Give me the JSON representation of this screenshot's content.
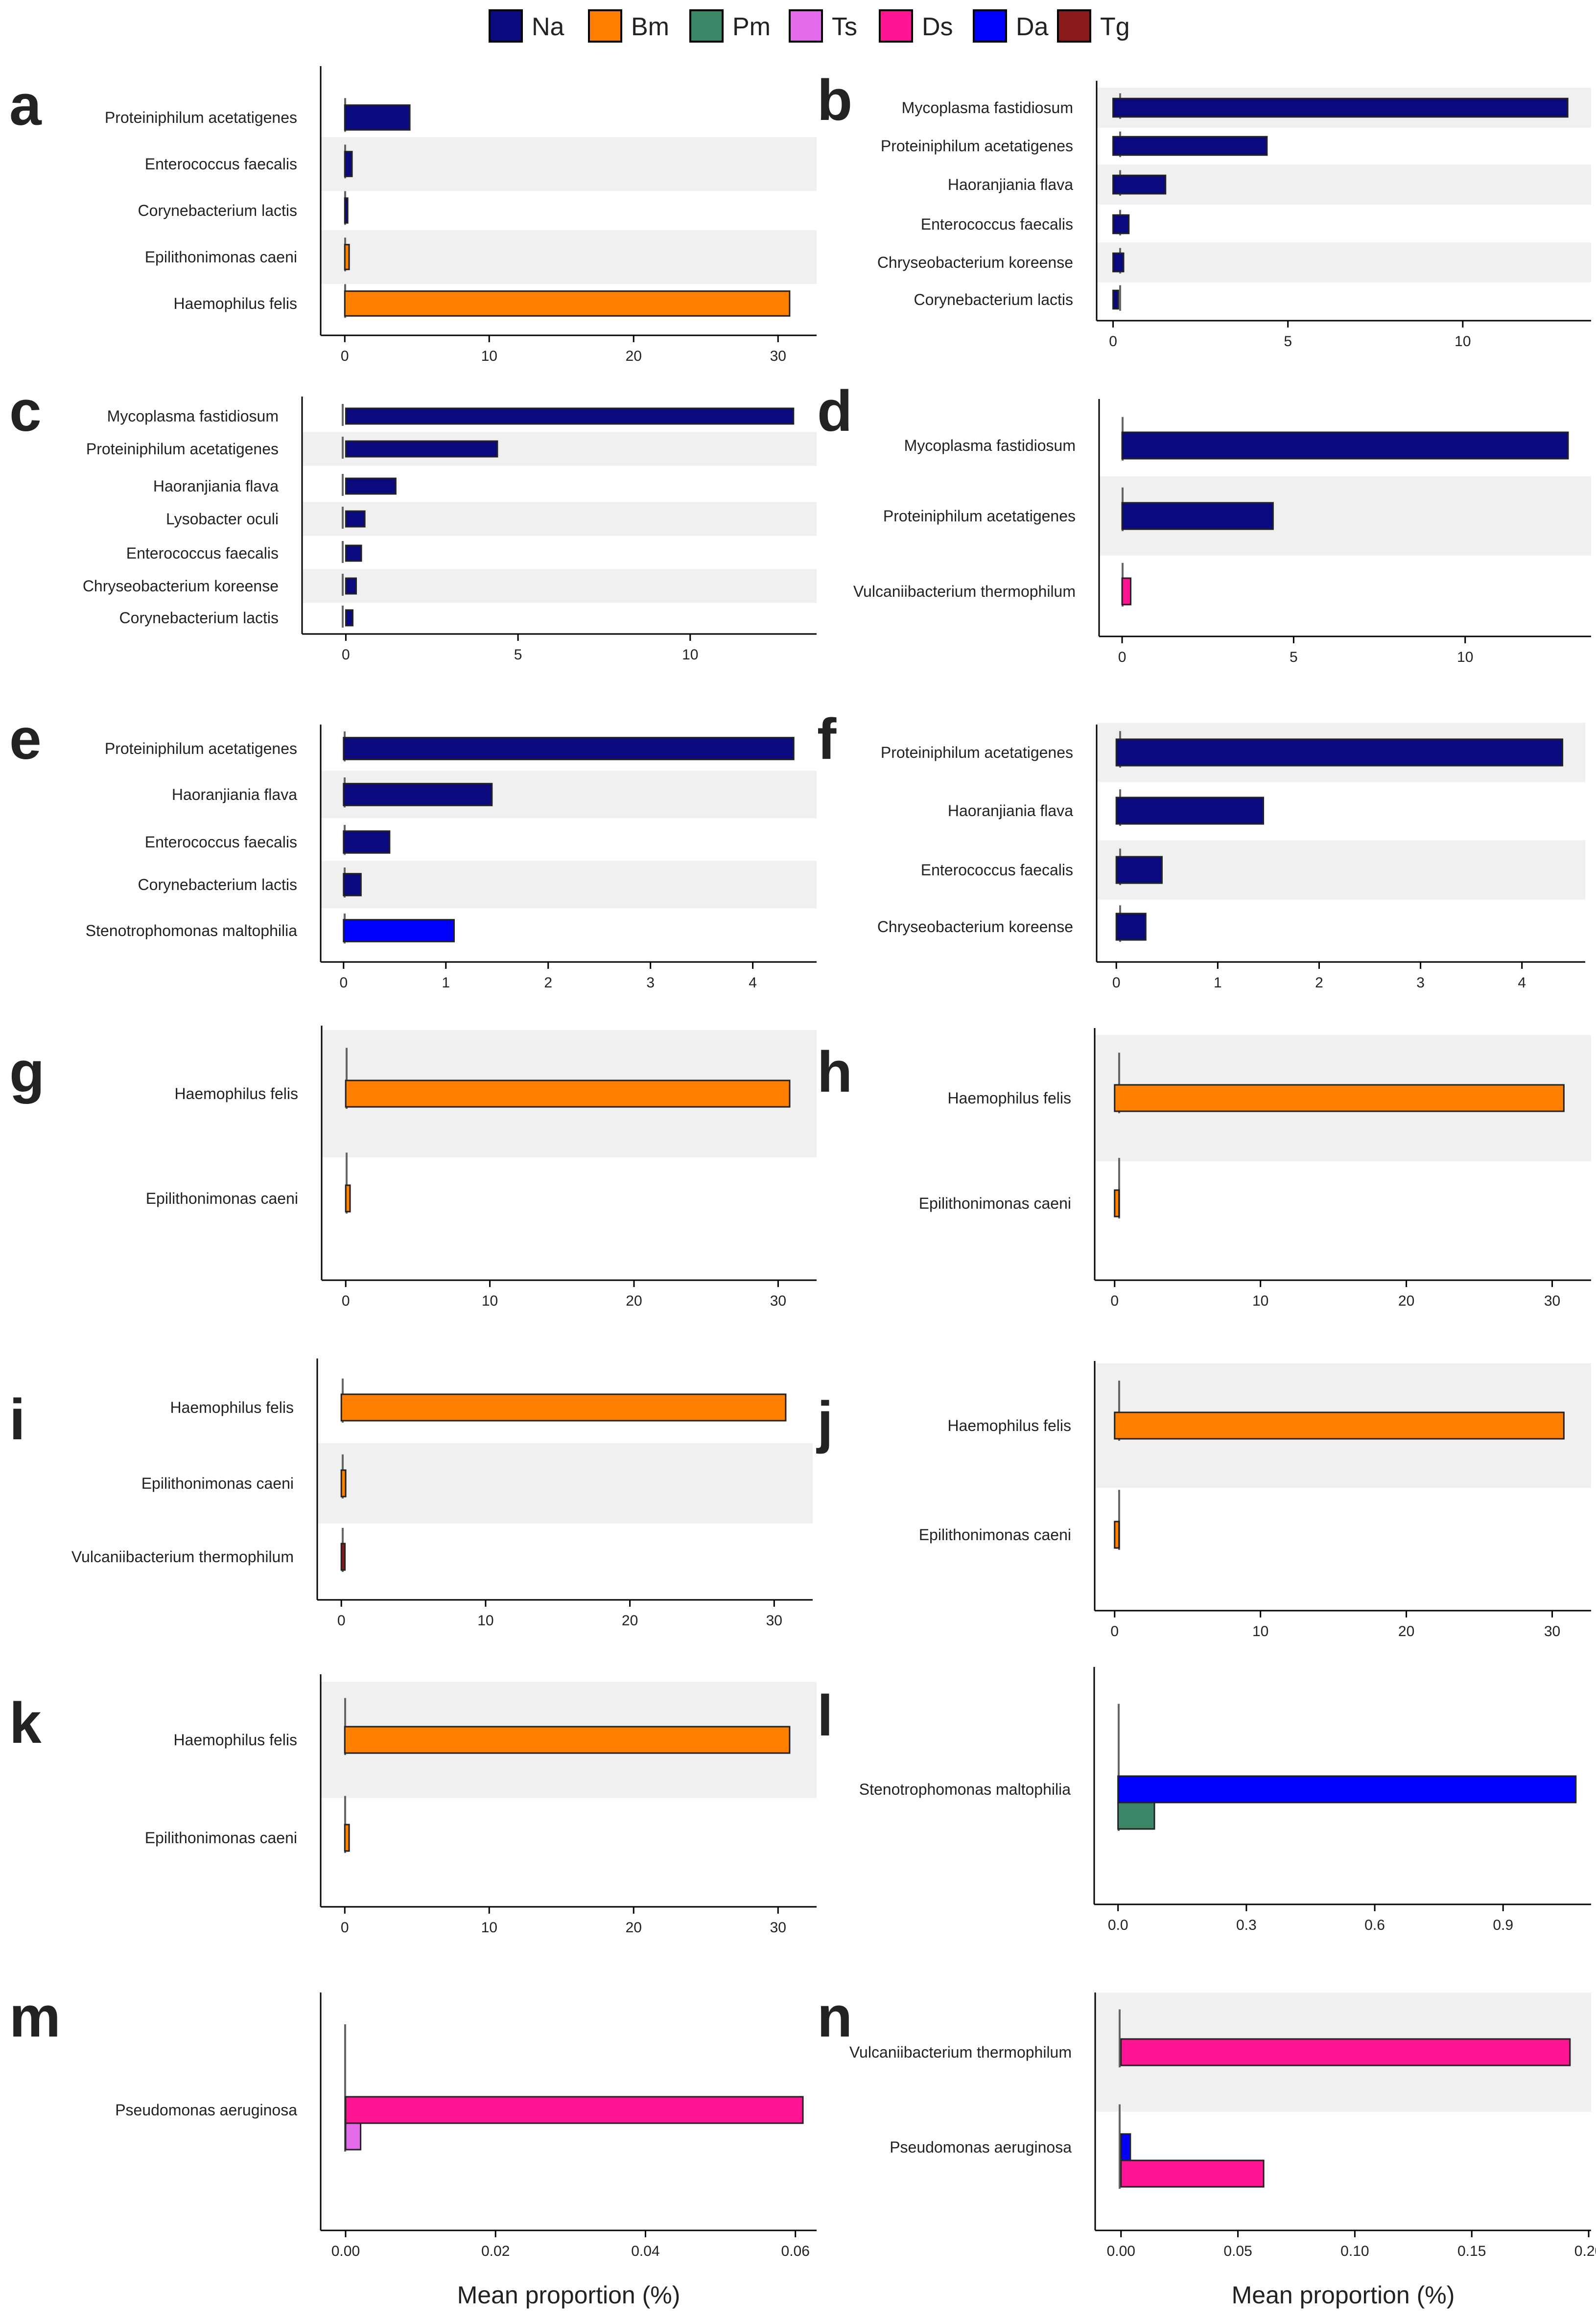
{
  "legend": [
    {
      "code": "Na",
      "color": "#0a0a7e"
    },
    {
      "code": "Bm",
      "color": "#ff8000"
    },
    {
      "code": "Pm",
      "color": "#3b8768"
    },
    {
      "code": "Ts",
      "color": "#e36bea"
    },
    {
      "code": "Ds",
      "color": "#ff1493"
    },
    {
      "code": "Da",
      "color": "#0000ff"
    },
    {
      "code": "Tg",
      "color": "#8b1a1a"
    }
  ],
  "xlabel": "Mean proportion (%)",
  "chart_data": [
    {
      "panel": "a",
      "type": "bar",
      "xlabel": "",
      "xlim": [
        -1.5,
        32.5
      ],
      "ticks": [
        0,
        10,
        20,
        30
      ],
      "categories": [
        "Proteiniphilum acetatigenes",
        "Enterococcus faecalis",
        "Corynebacterium lactis",
        "Epilithonimonas caeni",
        "Haemophilus felis"
      ],
      "bands": [
        false,
        true,
        false,
        true,
        false
      ],
      "series": [
        [
          {
            "group": "Na",
            "value": 4.5
          }
        ],
        [
          {
            "group": "Na",
            "value": 0.5
          }
        ],
        [
          {
            "group": "Na",
            "value": 0.2
          }
        ],
        [
          {
            "group": "Bm",
            "value": 0.3
          }
        ],
        [
          {
            "group": "Bm",
            "value": 30.8
          }
        ]
      ]
    },
    {
      "panel": "b",
      "type": "bar",
      "xlabel": "",
      "xlim": [
        -0.4,
        13.6
      ],
      "ticks": [
        0,
        5,
        10
      ],
      "categories": [
        "Mycoplasma fastidiosum",
        "Proteiniphilum acetatigenes",
        "Haoranjiania flava",
        "Enterococcus faecalis",
        "Chryseobacterium koreense",
        "Corynebacterium lactis"
      ],
      "bands": [
        true,
        false,
        true,
        false,
        true,
        false
      ],
      "series": [
        [
          {
            "group": "Na",
            "value": 13.0
          }
        ],
        [
          {
            "group": "Na",
            "value": 4.4
          }
        ],
        [
          {
            "group": "Na",
            "value": 1.5
          }
        ],
        [
          {
            "group": "Na",
            "value": 0.45
          }
        ],
        [
          {
            "group": "Na",
            "value": 0.3
          }
        ],
        [
          {
            "group": "Na",
            "value": 0.15
          }
        ]
      ]
    },
    {
      "panel": "c",
      "type": "bar",
      "xlabel": "",
      "xlim": [
        -1.2,
        13.6
      ],
      "ticks": [
        0,
        5,
        10
      ],
      "categories": [
        "Mycoplasma fastidiosum",
        "Proteiniphilum acetatigenes",
        "Haoranjiania flava",
        "Lysobacter oculi",
        "Enterococcus faecalis",
        "Chryseobacterium koreense",
        "Corynebacterium lactis"
      ],
      "bands": [
        false,
        true,
        false,
        true,
        false,
        true,
        false
      ],
      "series": [
        [
          {
            "group": "Na",
            "value": 13.0
          }
        ],
        [
          {
            "group": "Na",
            "value": 4.4
          }
        ],
        [
          {
            "group": "Na",
            "value": 1.45
          }
        ],
        [
          {
            "group": "Na",
            "value": 0.55
          }
        ],
        [
          {
            "group": "Na",
            "value": 0.45
          }
        ],
        [
          {
            "group": "Na",
            "value": 0.3
          }
        ],
        [
          {
            "group": "Na",
            "value": 0.2
          }
        ]
      ]
    },
    {
      "panel": "d",
      "type": "bar",
      "xlabel": "",
      "xlim": [
        -0.6,
        13.6
      ],
      "ticks": [
        0,
        5,
        10
      ],
      "categories": [
        "Mycoplasma fastidiosum",
        "Proteiniphilum acetatigenes",
        "Vulcaniibacterium thermophilum"
      ],
      "bands": [
        false,
        true,
        false
      ],
      "series": [
        [
          {
            "group": "Na",
            "value": 13.0
          }
        ],
        [
          {
            "group": "Na",
            "value": 4.4
          }
        ],
        [
          {
            "group": "Ds",
            "value": 0.25
          }
        ]
      ]
    },
    {
      "panel": "e",
      "type": "bar",
      "xlabel": "",
      "xlim": [
        -0.2,
        4.6
      ],
      "ticks": [
        0,
        1,
        2,
        3,
        4
      ],
      "categories": [
        "Proteiniphilum acetatigenes",
        "Haoranjiania flava",
        "Enterococcus faecalis",
        "Corynebacterium lactis",
        "Stenotrophomonas maltophilia"
      ],
      "bands": [
        false,
        true,
        false,
        true,
        false
      ],
      "series": [
        [
          {
            "group": "Na",
            "value": 4.4
          }
        ],
        [
          {
            "group": "Na",
            "value": 1.45
          }
        ],
        [
          {
            "group": "Na",
            "value": 0.45
          }
        ],
        [
          {
            "group": "Na",
            "value": 0.17
          }
        ],
        [
          {
            "group": "Da",
            "value": 1.08
          }
        ]
      ]
    },
    {
      "panel": "f",
      "type": "bar",
      "xlabel": "",
      "xlim": [
        -0.17,
        4.6
      ],
      "ticks": [
        0,
        1,
        2,
        3,
        4
      ],
      "categories": [
        "Proteiniphilum acetatigenes",
        "Haoranjiania flava",
        "Enterococcus faecalis",
        "Chryseobacterium koreense"
      ],
      "bands": [
        true,
        false,
        true,
        false
      ],
      "series": [
        [
          {
            "group": "Na",
            "value": 4.4
          }
        ],
        [
          {
            "group": "Na",
            "value": 1.45
          }
        ],
        [
          {
            "group": "Na",
            "value": 0.45
          }
        ],
        [
          {
            "group": "Na",
            "value": 0.29
          }
        ]
      ]
    },
    {
      "panel": "g",
      "type": "bar",
      "xlabel": "",
      "xlim": [
        -1.5,
        32.5
      ],
      "ticks": [
        0,
        10,
        20,
        30
      ],
      "categories": [
        "Haemophilus felis",
        "Epilithonimonas caeni"
      ],
      "bands": [
        true,
        false
      ],
      "series": [
        [
          {
            "group": "Bm",
            "value": 30.8
          }
        ],
        [
          {
            "group": "Bm",
            "value": 0.3
          }
        ]
      ]
    },
    {
      "panel": "h",
      "type": "bar",
      "xlabel": "",
      "xlim": [
        -1.2,
        32.5
      ],
      "ticks": [
        0,
        10,
        20,
        30
      ],
      "categories": [
        "Haemophilus felis",
        "Epilithonimonas caeni"
      ],
      "bands": [
        true,
        false
      ],
      "series": [
        [
          {
            "group": "Bm",
            "value": 30.8
          }
        ],
        [
          {
            "group": "Bm",
            "value": 0.3
          }
        ]
      ]
    },
    {
      "panel": "i",
      "type": "bar",
      "xlabel": "",
      "xlim": [
        -1.5,
        32.5
      ],
      "ticks": [
        0,
        10,
        20,
        30
      ],
      "categories": [
        "Haemophilus felis",
        "Epilithonimonas caeni",
        "Vulcaniibacterium thermophilum"
      ],
      "bands": [
        false,
        true,
        false
      ],
      "series": [
        [
          {
            "group": "Bm",
            "value": 30.8
          }
        ],
        [
          {
            "group": "Bm",
            "value": 0.3
          }
        ],
        [
          {
            "group": "Tg",
            "value": 0.25
          }
        ]
      ]
    },
    {
      "panel": "j",
      "type": "bar",
      "xlabel": "",
      "xlim": [
        -1.2,
        32.5
      ],
      "ticks": [
        0,
        10,
        20,
        30
      ],
      "categories": [
        "Haemophilus felis",
        "Epilithonimonas caeni"
      ],
      "bands": [
        true,
        false
      ],
      "series": [
        [
          {
            "group": "Bm",
            "value": 30.8
          }
        ],
        [
          {
            "group": "Bm",
            "value": 0.3
          }
        ]
      ]
    },
    {
      "panel": "k",
      "type": "bar",
      "xlabel": "",
      "xlim": [
        -1.5,
        32.5
      ],
      "ticks": [
        0,
        10,
        20,
        30
      ],
      "categories": [
        "Haemophilus felis",
        "Epilithonimonas caeni"
      ],
      "bands": [
        true,
        false
      ],
      "series": [
        [
          {
            "group": "Bm",
            "value": 30.8
          }
        ],
        [
          {
            "group": "Bm",
            "value": 0.3
          }
        ]
      ]
    },
    {
      "panel": "l",
      "type": "bar",
      "xlabel": "",
      "xlim": [
        -0.05,
        1.1
      ],
      "ticks": [
        0.0,
        0.3,
        0.6,
        0.9
      ],
      "tick_decimals": 1,
      "categories": [
        "Stenotrophomonas maltophilia"
      ],
      "bands": [
        false
      ],
      "series": [
        [
          {
            "group": "Da",
            "value": 1.07
          },
          {
            "group": "Pm",
            "value": 0.085
          }
        ]
      ]
    },
    {
      "panel": "m",
      "type": "bar",
      "xlabel": "Mean proportion (%)",
      "xlim": [
        -0.003,
        0.0625
      ],
      "ticks": [
        0.0,
        0.02,
        0.04,
        0.06
      ],
      "tick_decimals": 2,
      "categories": [
        "Pseudomonas aeruginosa"
      ],
      "bands": [
        false
      ],
      "series": [
        [
          {
            "group": "Ds",
            "value": 0.061
          },
          {
            "group": "Ts",
            "value": 0.002
          }
        ]
      ]
    },
    {
      "panel": "n",
      "type": "bar",
      "xlabel": "Mean proportion (%)",
      "xlim": [
        -0.01,
        0.2
      ],
      "ticks": [
        0.0,
        0.05,
        0.1,
        0.15,
        0.2
      ],
      "tick_decimals": 2,
      "categories": [
        "Vulcaniibacterium thermophilum",
        "Pseudomonas aeruginosa"
      ],
      "bands": [
        true,
        false
      ],
      "series": [
        [
          {
            "group": "Ds",
            "value": 0.192
          }
        ],
        [
          {
            "group": "Da",
            "value": 0.004
          },
          {
            "group": "Ds",
            "value": 0.061
          }
        ]
      ]
    }
  ]
}
